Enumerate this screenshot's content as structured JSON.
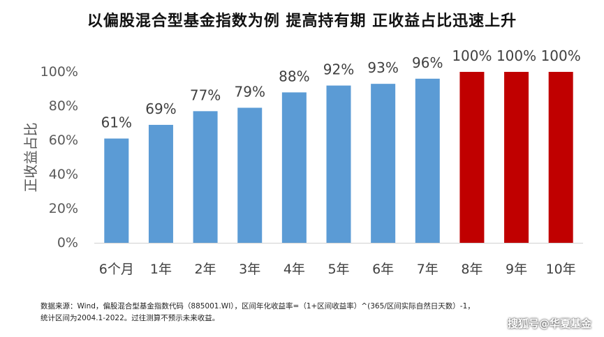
{
  "chart_data": {
    "type": "bar",
    "title": "以偏股混合型基金指数为例 提高持有期 正收益占比迅速上升",
    "ylabel": "正收益占比",
    "xlabel": "",
    "categories": [
      "6个月",
      "1年",
      "2年",
      "3年",
      "4年",
      "5年",
      "6年",
      "7年",
      "8年",
      "9年",
      "10年"
    ],
    "values": [
      61,
      69,
      77,
      79,
      88,
      92,
      93,
      96,
      100,
      100,
      100
    ],
    "data_labels": [
      "61%",
      "69%",
      "77%",
      "79%",
      "88%",
      "92%",
      "93%",
      "96%",
      "100%",
      "100%",
      "100%"
    ],
    "ylim": [
      0,
      100
    ],
    "yticks": [
      0,
      20,
      40,
      60,
      80,
      100
    ],
    "ytick_labels": [
      "0%",
      "20%",
      "40%",
      "60%",
      "80%",
      "100%"
    ],
    "grid": false,
    "legend": "none",
    "colors": {
      "default_bar": "#5b9bd5",
      "highlight_bar": "#c00000"
    },
    "highlight_categories": [
      "8年",
      "9年",
      "10年"
    ]
  },
  "footnote": {
    "line1": "数据来源：Wind，偏股混合型基金指数代码（885001.WI），区间年化收益率=（1+区间收益率）^(365/区间实际自然日天数）-1，",
    "line2": "统计区间为2004.1-2022。过往测算不预示未来收益。"
  },
  "watermark": "搜狐号@华夏基金"
}
